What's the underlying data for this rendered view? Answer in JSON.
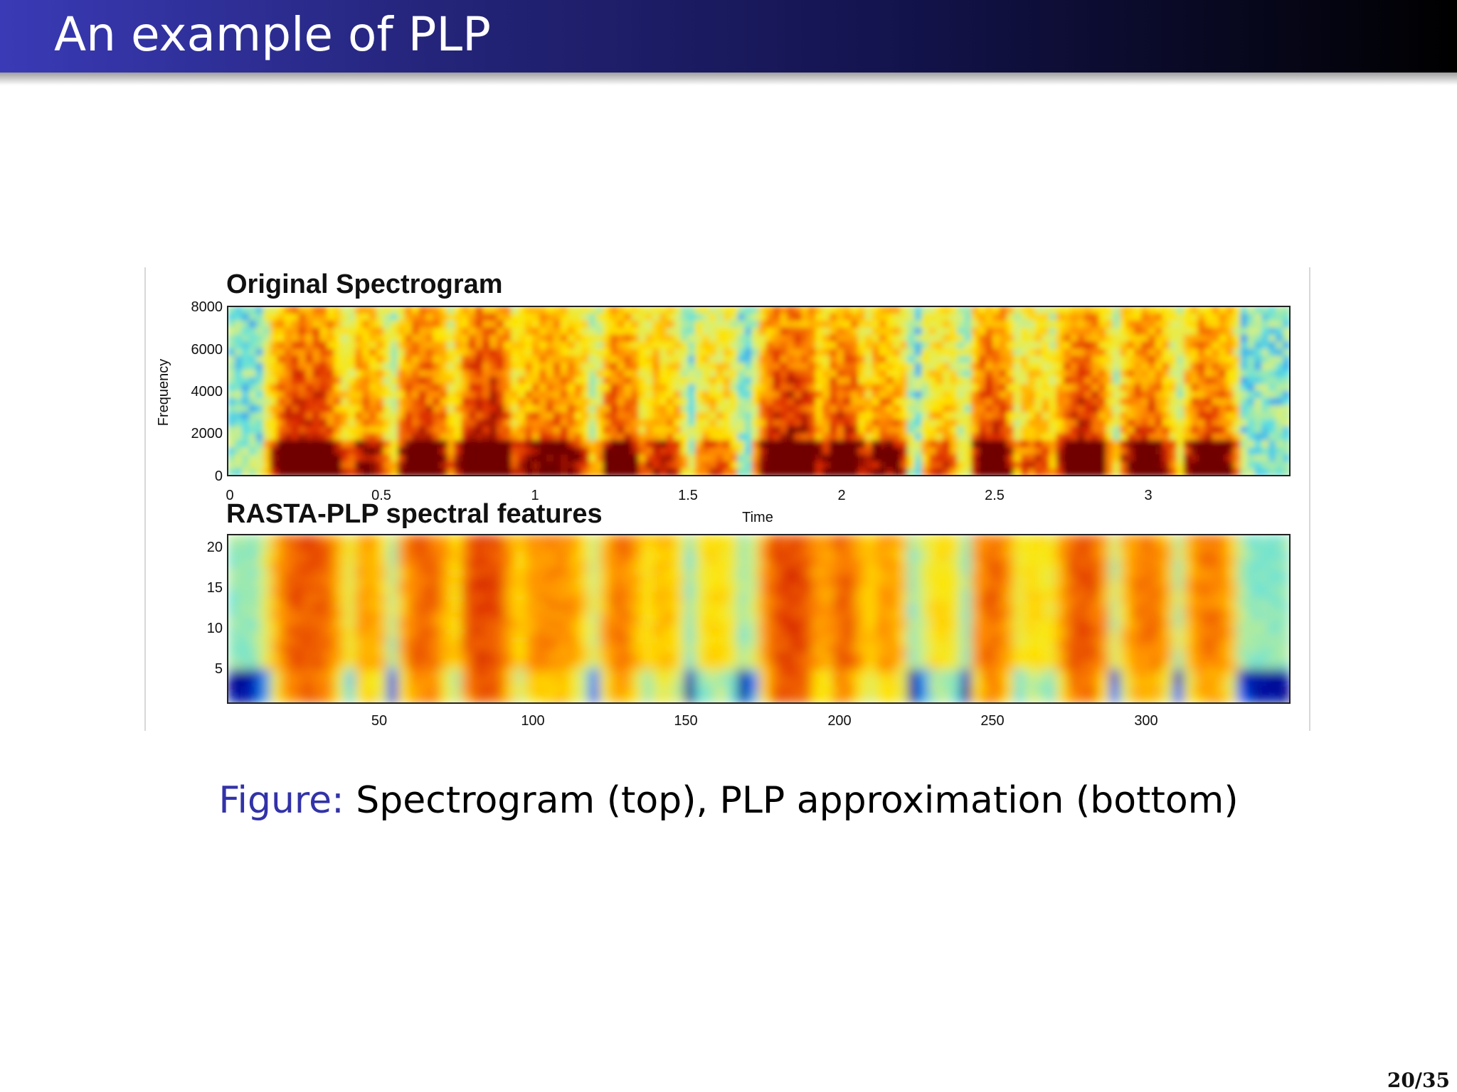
{
  "slide": {
    "title": "An example of PLP",
    "caption_prefix": "Figure:",
    "caption_text": " Spectrogram (top), PLP approximation (bottom)",
    "page_number": "20/35"
  },
  "figure": {
    "top_panel": {
      "title": "Original Spectrogram",
      "ylabel": "Frequency",
      "xlabel": "Time",
      "y_ticks": [
        "8000",
        "6000",
        "4000",
        "2000",
        "0"
      ],
      "x_ticks": [
        "0",
        "0.5",
        "1",
        "1.5",
        "2",
        "2.5",
        "3"
      ]
    },
    "bottom_panel": {
      "title": "RASTA-PLP spectral features",
      "y_ticks": [
        "20",
        "15",
        "10",
        "5"
      ],
      "x_ticks": [
        "50",
        "100",
        "150",
        "200",
        "250",
        "300"
      ]
    },
    "colormap": [
      "#00008f",
      "#0060ff",
      "#5ee0e0",
      "#d6f080",
      "#ffe400",
      "#ff8a00",
      "#dc2a00",
      "#6e0000"
    ]
  }
}
